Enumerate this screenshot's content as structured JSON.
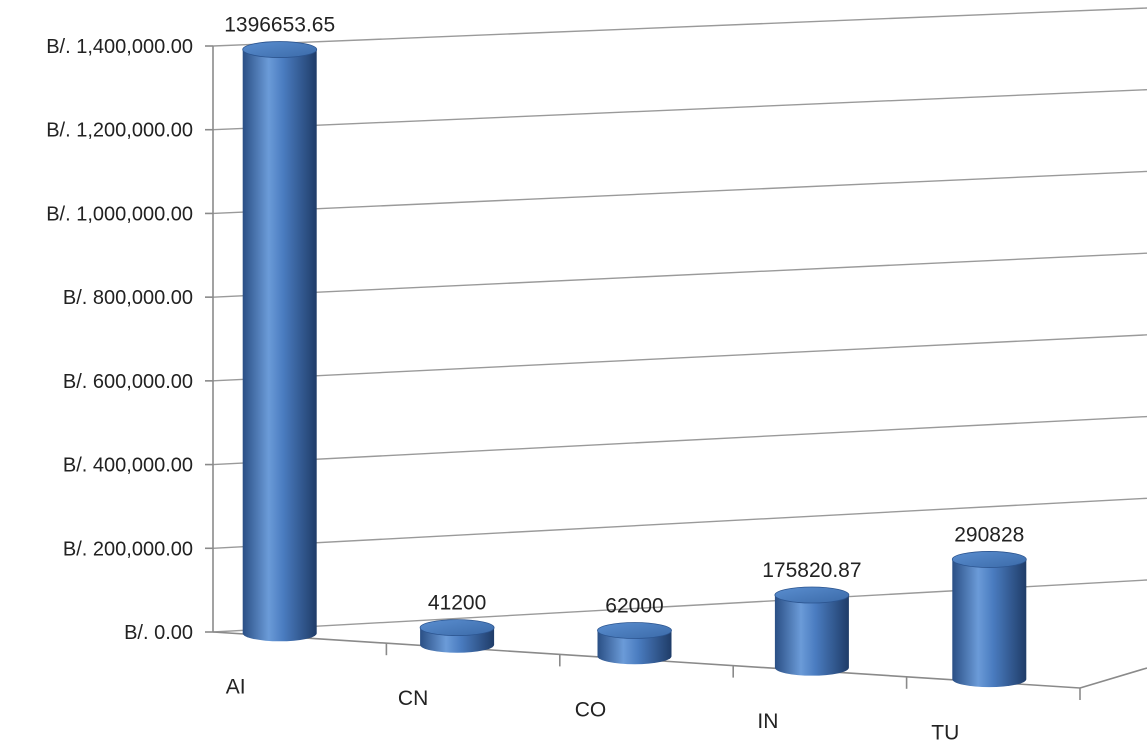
{
  "chart_data": {
    "type": "bar",
    "style": "3d-cylinder",
    "categories": [
      "AI",
      "CN",
      "CO",
      "IN",
      "TU"
    ],
    "values": [
      1396653.65,
      41200,
      62000,
      175820.87,
      290828
    ],
    "data_labels": [
      "1396653.65",
      "41200",
      "62000",
      "175820.87",
      "290828"
    ],
    "y_ticks": [
      0,
      200000,
      400000,
      600000,
      800000,
      1000000,
      1200000,
      1400000
    ],
    "y_tick_labels": [
      "B/. 0.00",
      "B/. 200,000.00",
      "B/. 400,000.00",
      "B/. 600,000.00",
      "B/. 800,000.00",
      "B/. 1,000,000.00",
      "B/. 1,200,000.00",
      "B/. 1,400,000.00"
    ],
    "ylim": [
      0,
      1400000
    ],
    "grid": true,
    "legend": "none",
    "bar_color": "#4f81bd"
  }
}
